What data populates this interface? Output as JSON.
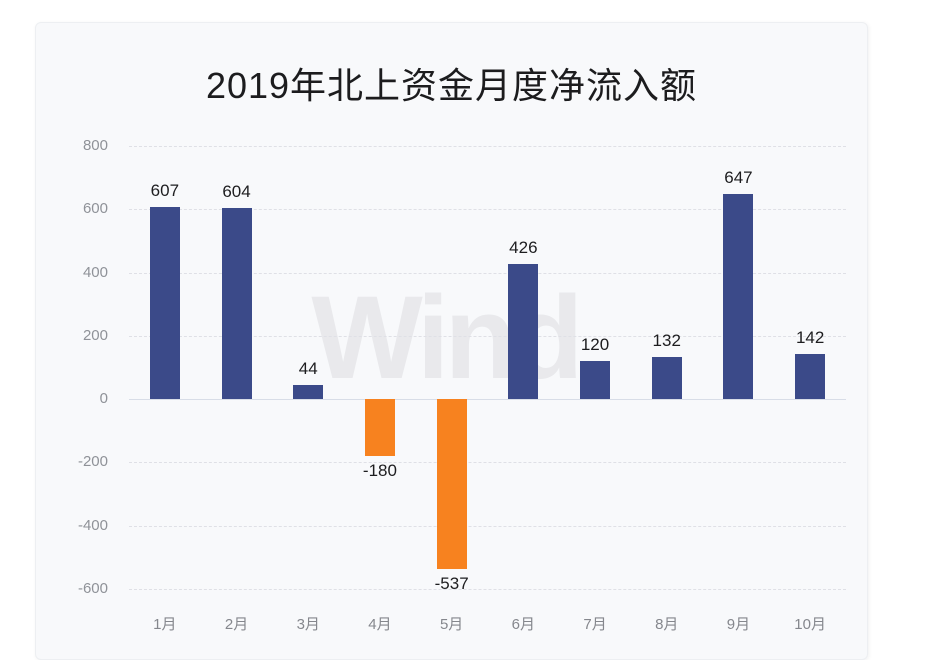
{
  "chart_data": {
    "type": "bar",
    "title": "2019年北上资金月度净流入额",
    "categories": [
      "1月",
      "2月",
      "3月",
      "4月",
      "5月",
      "6月",
      "7月",
      "8月",
      "9月",
      "10月"
    ],
    "values": [
      607,
      604,
      44,
      -180,
      -537,
      426,
      120,
      132,
      647,
      142
    ],
    "xlabel": "",
    "ylabel": "",
    "ylim": [
      -600,
      800
    ],
    "yticks": [
      800,
      600,
      400,
      200,
      0,
      -200,
      -400,
      -600
    ],
    "grid": "horizontal-dashed",
    "legend": "none",
    "watermark": "Wind",
    "colors": {
      "positive_bar": "#3b4a89",
      "negative_bar": "#f7821f",
      "value_label": "#1d1d1f",
      "axis_label": "#8f9298",
      "gridline": "#dfe0e6",
      "zero_line": "#d8dde7",
      "panel_background": "#f8f9fb",
      "title_text": "#1c1c1e",
      "watermark_text": "#e9e9ed"
    }
  }
}
